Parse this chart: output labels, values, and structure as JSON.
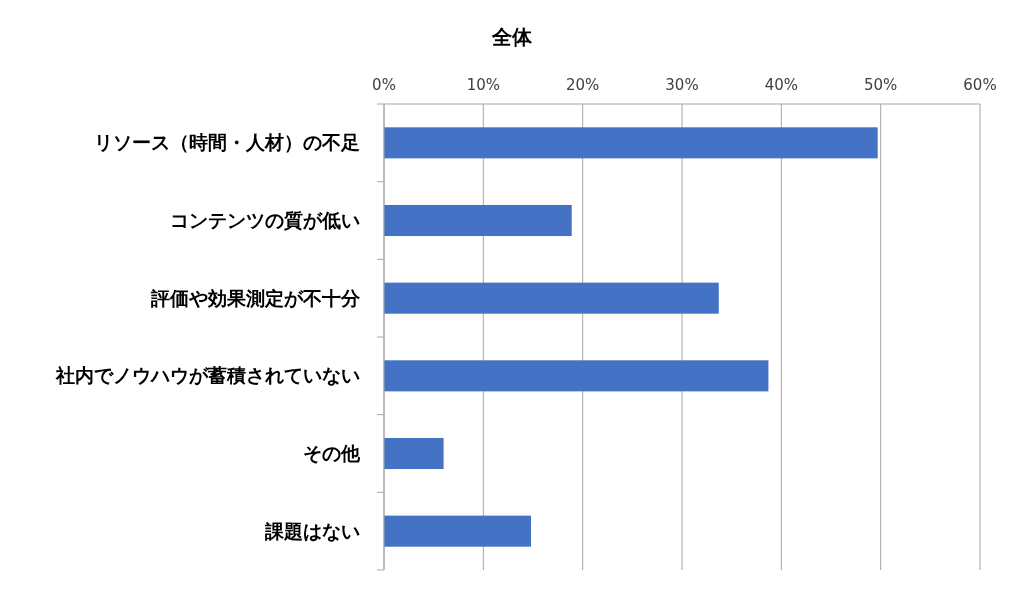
{
  "chart_data": {
    "type": "bar",
    "orientation": "horizontal",
    "title": "全体",
    "categories": [
      "リソース（時間・人材）の不足",
      "コンテンツの質が低い",
      "評価や効果測定が不十分",
      "社内でノウハウが蓄積されていない",
      "その他",
      "課題はない"
    ],
    "values": [
      49.7,
      18.9,
      33.7,
      38.7,
      6.0,
      14.8
    ],
    "color": "#4472c4",
    "xlim": [
      0,
      60
    ],
    "xticks": [
      {
        "value": 0,
        "label": "0%"
      },
      {
        "value": 10,
        "label": "10%"
      },
      {
        "value": 20,
        "label": "20%"
      },
      {
        "value": 30,
        "label": "30%"
      },
      {
        "value": 40,
        "label": "40%"
      },
      {
        "value": 50,
        "label": "50%"
      },
      {
        "value": 60,
        "label": "60%"
      }
    ],
    "grid": "x"
  }
}
